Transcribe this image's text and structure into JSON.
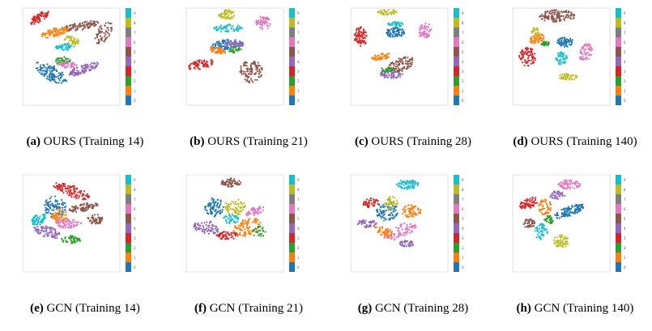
{
  "palette": [
    "#1f77b4",
    "#ff7f0e",
    "#2ca02c",
    "#d62728",
    "#9467bd",
    "#8c564b",
    "#e377c2",
    "#7f7f7f",
    "#bcbd22",
    "#17becf"
  ],
  "panels": [
    {
      "label": "(a)",
      "text": "OURS (Training 14)"
    },
    {
      "label": "(b)",
      "text": "OURS (Training 21)"
    },
    {
      "label": "(c)",
      "text": "OURS (Training 28)"
    },
    {
      "label": "(d)",
      "text": "OURS (Training 140)"
    },
    {
      "label": "(e)",
      "text": "GCN (Training 14)"
    },
    {
      "label": "(f)",
      "text": "GCN (Training 21)"
    },
    {
      "label": "(g)",
      "text": "GCN (Training 28)"
    },
    {
      "label": "(h)",
      "text": "GCN (Training 140)"
    }
  ],
  "colorbar_ticks": [
    "0",
    "1",
    "2",
    "3",
    "4",
    "5",
    "6",
    "7",
    "8",
    "9"
  ]
}
